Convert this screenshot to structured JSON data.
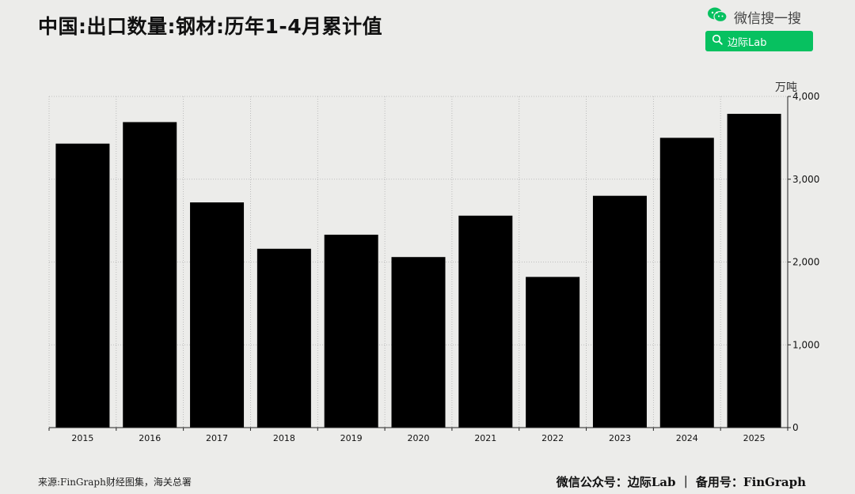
{
  "header": {
    "title": "中国:出口数量:钢材:历年1-4月累计值",
    "wechat_text": "微信搜一搜",
    "search_label": "边际Lab"
  },
  "footer": {
    "source": "来源:FinGraph财经图集，海关总署",
    "brand": "微信公众号：边际Lab ｜ 备用号：FinGraph"
  },
  "colors": {
    "background": "#ececea",
    "bar": "#000000",
    "wechat_green": "#07c160"
  },
  "chart_data": {
    "type": "bar",
    "unit_label": "万吨",
    "categories": [
      "2015",
      "2016",
      "2017",
      "2018",
      "2019",
      "2020",
      "2021",
      "2022",
      "2023",
      "2024",
      "2025"
    ],
    "values": [
      3430,
      3690,
      2720,
      2160,
      2330,
      2060,
      2560,
      1820,
      2800,
      3500,
      3790
    ],
    "ylim": [
      0,
      4000
    ],
    "yticks": [
      0,
      1000,
      2000,
      3000,
      4000
    ],
    "ytick_labels": [
      "0",
      "1,000",
      "2,000",
      "3,000",
      "4,000"
    ],
    "y_axis_position": "right",
    "grid": true
  }
}
